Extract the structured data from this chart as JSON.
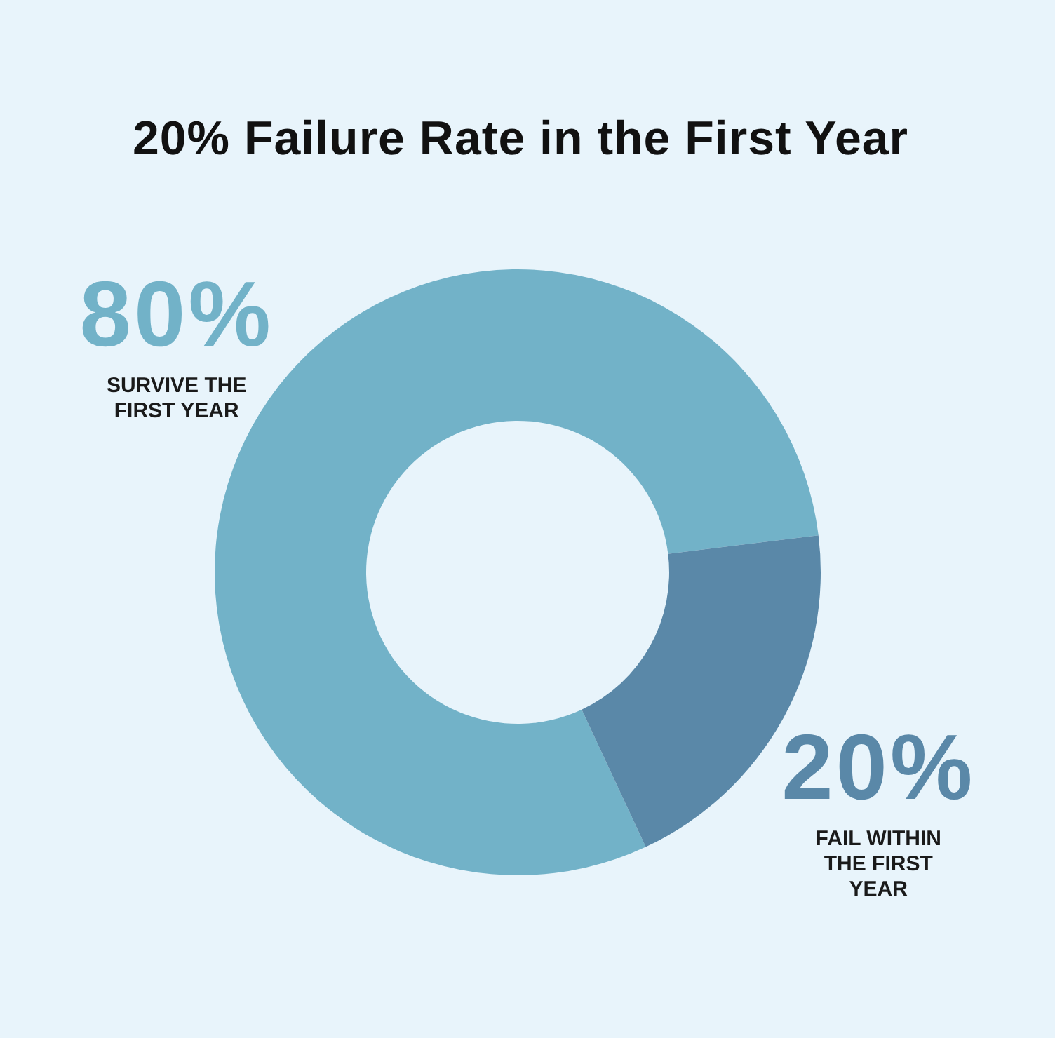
{
  "chart_data": {
    "type": "donut",
    "title": "20% Failure Rate in the First Year",
    "categories": [
      "SURVIVE THE FIRST YEAR",
      "FAIL WITHIN THE FIRST YEAR"
    ],
    "values": [
      80,
      20
    ],
    "colors": [
      "#72b2c8",
      "#5a88a8"
    ],
    "value_labels": [
      "80%",
      "20%"
    ]
  }
}
